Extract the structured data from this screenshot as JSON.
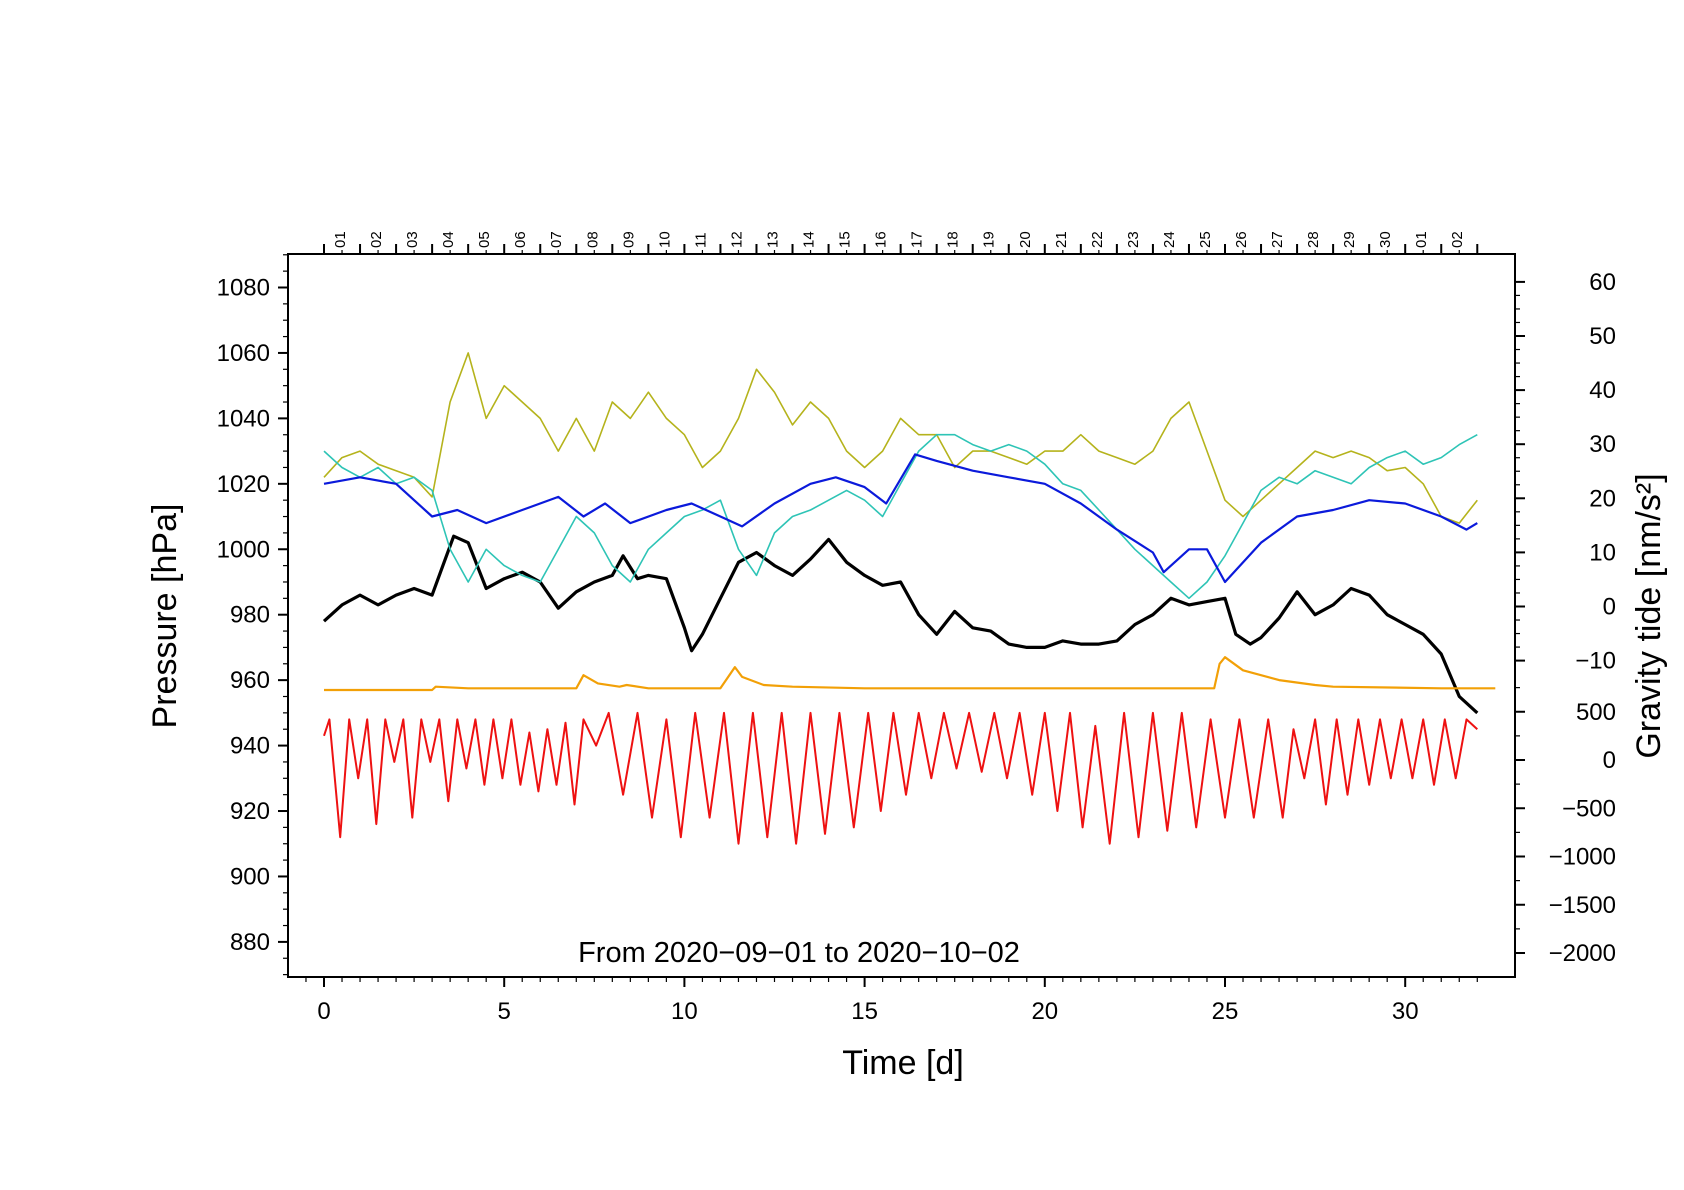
{
  "chart_data": {
    "type": "line",
    "title": "",
    "annotation": "From 2020−09−01 to 2020−10−02",
    "x_axis": {
      "label": "Time [d]",
      "range": [
        -1,
        32.2
      ],
      "ticks": [
        0,
        5,
        10,
        15,
        20,
        25,
        30
      ],
      "tick_labels": [
        "0",
        "5",
        "10",
        "15",
        "20",
        "25",
        "30"
      ]
    },
    "top_axis": {
      "day_labels": [
        "01",
        "02",
        "03",
        "04",
        "05",
        "06",
        "07",
        "08",
        "09",
        "10",
        "11",
        "12",
        "13",
        "14",
        "15",
        "16",
        "17",
        "18",
        "19",
        "20",
        "21",
        "22",
        "23",
        "24",
        "25",
        "26",
        "27",
        "28",
        "29",
        "30",
        "01",
        "02"
      ]
    },
    "y_left": {
      "label": "Pressure [hPa]",
      "range": [
        870,
        1090
      ],
      "ticks": [
        880,
        900,
        920,
        940,
        960,
        980,
        1000,
        1020,
        1040,
        1060,
        1080
      ],
      "tick_labels": [
        "880",
        "900",
        "920",
        "940",
        "960",
        "980",
        "1000",
        "1020",
        "1040",
        "1060",
        "1080"
      ]
    },
    "y_right_upper": {
      "label": "Gravity tide [nm/s²]",
      "ticks": [
        -10,
        0,
        10,
        20,
        30,
        40,
        50,
        60
      ],
      "tick_labels": [
        "−10",
        "0",
        "10",
        "20",
        "30",
        "40",
        "50",
        "60"
      ]
    },
    "y_right_lower": {
      "ticks": [
        -2000,
        -1500,
        -1000,
        -500,
        0,
        500
      ],
      "tick_labels": [
        "−2000",
        "−1500",
        "−1000",
        "−500",
        "0",
        "500"
      ]
    },
    "series": [
      {
        "name": "pressure",
        "color": "#000000",
        "x": [
          0,
          0.5,
          1,
          1.5,
          2,
          2.5,
          3,
          3.3,
          3.6,
          4,
          4.5,
          5,
          5.5,
          6,
          6.5,
          7,
          7.5,
          8,
          8.3,
          8.7,
          9,
          9.5,
          10,
          10.2,
          10.5,
          11,
          11.5,
          12,
          12.5,
          13,
          13.5,
          14,
          14.5,
          15,
          15.5,
          16,
          16.5,
          17,
          17.5,
          18,
          18.5,
          19,
          19.5,
          20,
          20.5,
          21,
          21.5,
          22,
          22.5,
          23,
          23.5,
          24,
          24.5,
          25,
          25.3,
          25.7,
          26,
          26.5,
          27,
          27.5,
          28,
          28.5,
          29,
          29.5,
          30,
          30.5,
          31,
          31.5,
          32
        ],
        "y": [
          978,
          983,
          986,
          983,
          986,
          988,
          986,
          995,
          1004,
          1002,
          988,
          991,
          993,
          990,
          982,
          987,
          990,
          992,
          998,
          991,
          992,
          991,
          976,
          969,
          974,
          985,
          996,
          999,
          995,
          992,
          997,
          1003,
          996,
          992,
          989,
          990,
          980,
          974,
          981,
          976,
          975,
          971,
          970,
          970,
          972,
          971,
          971,
          972,
          977,
          980,
          985,
          983,
          984,
          985,
          974,
          971,
          973,
          979,
          987,
          980,
          983,
          988,
          986,
          980,
          977,
          974,
          968,
          955,
          950
        ]
      },
      {
        "name": "olive",
        "color": "#b5b31c",
        "x": [
          0,
          0.5,
          1,
          1.5,
          2,
          2.5,
          3,
          3.5,
          4,
          4.5,
          5,
          5.5,
          6,
          6.5,
          7,
          7.5,
          8,
          8.5,
          9,
          9.5,
          10,
          10.5,
          11,
          11.5,
          12,
          12.5,
          13,
          13.5,
          14,
          14.5,
          15,
          15.5,
          16,
          16.5,
          17,
          17.5,
          18,
          18.5,
          19,
          19.5,
          20,
          20.5,
          21,
          21.5,
          22,
          22.5,
          23,
          23.5,
          24,
          24.5,
          25,
          25.5,
          26,
          26.5,
          27,
          27.5,
          28,
          28.5,
          29,
          29.5,
          30,
          30.5,
          31,
          31.5,
          32
        ],
        "y": [
          1022,
          1028,
          1030,
          1026,
          1024,
          1022,
          1016,
          1045,
          1060,
          1040,
          1050,
          1045,
          1040,
          1030,
          1040,
          1030,
          1045,
          1040,
          1048,
          1040,
          1035,
          1025,
          1030,
          1040,
          1055,
          1048,
          1038,
          1045,
          1040,
          1030,
          1025,
          1030,
          1040,
          1035,
          1035,
          1025,
          1030,
          1030,
          1028,
          1026,
          1030,
          1030,
          1035,
          1030,
          1028,
          1026,
          1030,
          1040,
          1045,
          1030,
          1015,
          1010,
          1015,
          1020,
          1025,
          1030,
          1028,
          1030,
          1028,
          1024,
          1025,
          1020,
          1010,
          1008,
          1015
        ]
      },
      {
        "name": "cyan",
        "color": "#2ec4b6",
        "x": [
          0,
          0.5,
          1,
          1.5,
          2,
          2.5,
          3,
          3.5,
          4,
          4.5,
          5,
          5.5,
          6,
          6.5,
          7,
          7.5,
          8,
          8.5,
          9,
          9.5,
          10,
          10.5,
          11,
          11.5,
          12,
          12.5,
          13,
          13.5,
          14,
          14.5,
          15,
          15.5,
          16,
          16.5,
          17,
          17.5,
          18,
          18.5,
          19,
          19.5,
          20,
          20.5,
          21,
          21.5,
          22,
          22.5,
          23,
          23.5,
          24,
          24.5,
          25,
          25.5,
          26,
          26.5,
          27,
          27.5,
          28,
          28.5,
          29,
          29.5,
          30,
          30.5,
          31,
          31.5,
          32
        ],
        "y": [
          1030,
          1025,
          1022,
          1025,
          1020,
          1022,
          1018,
          1000,
          990,
          1000,
          995,
          992,
          990,
          1000,
          1010,
          1005,
          995,
          990,
          1000,
          1005,
          1010,
          1012,
          1015,
          1000,
          992,
          1005,
          1010,
          1012,
          1015,
          1018,
          1015,
          1010,
          1020,
          1030,
          1035,
          1035,
          1032,
          1030,
          1032,
          1030,
          1026,
          1020,
          1018,
          1012,
          1006,
          1000,
          995,
          990,
          985,
          990,
          998,
          1008,
          1018,
          1022,
          1020,
          1024,
          1022,
          1020,
          1025,
          1028,
          1030,
          1026,
          1028,
          1032,
          1035
        ]
      },
      {
        "name": "blue",
        "color": "#0b1adb",
        "x": [
          0,
          1,
          2,
          3,
          3.7,
          4.5,
          5.5,
          6.5,
          7.2,
          7.8,
          8.5,
          9.5,
          10.2,
          11,
          11.6,
          12.5,
          13.5,
          14.2,
          15,
          15.6,
          16.4,
          17,
          18,
          19,
          20,
          21,
          22,
          23,
          23.3,
          24,
          24.5,
          25,
          26,
          27,
          28,
          29,
          30,
          31,
          31.7,
          32
        ],
        "y": [
          1020,
          1022,
          1020,
          1010,
          1012,
          1008,
          1012,
          1016,
          1010,
          1014,
          1008,
          1012,
          1014,
          1010,
          1007,
          1014,
          1020,
          1022,
          1019,
          1014,
          1029,
          1027,
          1024,
          1022,
          1020,
          1014,
          1006,
          999,
          993,
          1000,
          1000,
          990,
          1002,
          1010,
          1012,
          1015,
          1014,
          1010,
          1006,
          1008
        ]
      },
      {
        "name": "orange",
        "color": "#f2a007",
        "x": [
          0,
          3,
          3.1,
          4,
          7,
          7.2,
          7.6,
          8.2,
          8.4,
          9,
          11,
          11.4,
          11.6,
          12.2,
          13,
          15,
          17,
          20,
          24.7,
          24.85,
          25,
          25.5,
          26.5,
          27.5,
          28,
          31,
          32.5
        ],
        "y": [
          957,
          957,
          958,
          957.5,
          957.5,
          961.5,
          959,
          958,
          958.5,
          957.5,
          957.5,
          964,
          961,
          958.5,
          958,
          957.5,
          957.5,
          957.5,
          957.5,
          965,
          967,
          963,
          960,
          958.5,
          958,
          957.5,
          957.5
        ]
      },
      {
        "name": "gravity tide",
        "color": "#ee1111",
        "x": [
          0,
          0.15,
          0.45,
          0.7,
          0.95,
          1.2,
          1.45,
          1.7,
          1.95,
          2.2,
          2.45,
          2.7,
          2.95,
          3.2,
          3.45,
          3.7,
          3.95,
          4.2,
          4.45,
          4.7,
          4.95,
          5.2,
          5.45,
          5.7,
          5.95,
          6.2,
          6.45,
          6.7,
          6.95,
          7.2,
          7.55,
          7.9,
          8.3,
          8.7,
          9.1,
          9.5,
          9.9,
          10.3,
          10.7,
          11.1,
          11.5,
          11.9,
          12.3,
          12.7,
          13.1,
          13.5,
          13.9,
          14.3,
          14.7,
          15.1,
          15.45,
          15.8,
          16.15,
          16.5,
          16.85,
          17.2,
          17.55,
          17.9,
          18.25,
          18.6,
          18.95,
          19.3,
          19.65,
          20,
          20.35,
          20.7,
          21.05,
          21.4,
          21.8,
          22.2,
          22.6,
          23,
          23.4,
          23.8,
          24.2,
          24.6,
          25,
          25.4,
          25.8,
          26.2,
          26.6,
          26.9,
          27.2,
          27.5,
          27.8,
          28.1,
          28.4,
          28.7,
          29,
          29.3,
          29.6,
          29.9,
          30.2,
          30.5,
          30.8,
          31.1,
          31.4,
          31.7,
          32
        ],
        "y": [
          943,
          948,
          912,
          948,
          930,
          948,
          916,
          948,
          935,
          948,
          918,
          948,
          935,
          948,
          923,
          948,
          933,
          948,
          928,
          948,
          930,
          948,
          928,
          944,
          926,
          945,
          928,
          947,
          922,
          948,
          940,
          950,
          925,
          950,
          918,
          948,
          912,
          950,
          918,
          950,
          910,
          950,
          912,
          950,
          910,
          950,
          913,
          950,
          915,
          950,
          920,
          950,
          925,
          950,
          930,
          950,
          933,
          950,
          932,
          950,
          930,
          950,
          925,
          950,
          920,
          950,
          915,
          946,
          910,
          950,
          912,
          950,
          914,
          950,
          915,
          948,
          918,
          948,
          918,
          948,
          918,
          945,
          930,
          948,
          922,
          948,
          925,
          948,
          928,
          948,
          930,
          948,
          930,
          948,
          928,
          948,
          930,
          948,
          945
        ]
      }
    ]
  }
}
